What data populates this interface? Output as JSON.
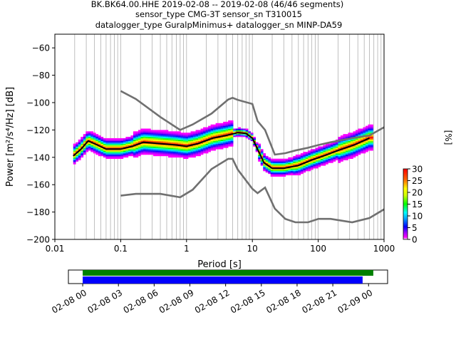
{
  "title": {
    "line1": "BK.BK64.00.HHE   2019-02-08 -- 2019-02-08  (46/46 segments)",
    "line2": "sensor_type CMG-3T sensor_sn T310015",
    "line3": "datalogger_type GuralpMinimus+ datalogger_sn MINP-DA59"
  },
  "chart_data": {
    "type": "heatmap",
    "xlabel": "Period [s]",
    "ylabel": "Power [m²/s⁴/Hz] [dB]",
    "x_scale": "log",
    "xlim": [
      0.01,
      1000
    ],
    "ylim": [
      -200,
      -50
    ],
    "x_ticks": [
      {
        "v": 0.01,
        "label": "0.01"
      },
      {
        "v": 0.1,
        "label": "0.1"
      },
      {
        "v": 1,
        "label": "1"
      },
      {
        "v": 10,
        "label": "10"
      },
      {
        "v": 100,
        "label": "100"
      },
      {
        "v": 1000,
        "label": "1000"
      }
    ],
    "y_ticks": [
      {
        "v": -60,
        "label": "−60"
      },
      {
        "v": -80,
        "label": "−80"
      },
      {
        "v": -100,
        "label": "−100"
      },
      {
        "v": -120,
        "label": "−120"
      },
      {
        "v": -140,
        "label": "−140"
      },
      {
        "v": -160,
        "label": "−160"
      },
      {
        "v": -180,
        "label": "−180"
      },
      {
        "v": -200,
        "label": "−200"
      }
    ],
    "grid": "vertical, at log-spaced periods",
    "nhnm_line": [
      [
        0.1,
        -91.5
      ],
      [
        0.17,
        -97.4
      ],
      [
        0.4,
        -110.5
      ],
      [
        0.8,
        -120
      ],
      [
        1.24,
        -116
      ],
      [
        2.4,
        -108
      ],
      [
        4.3,
        -97.7
      ],
      [
        5,
        -96.5
      ],
      [
        6,
        -98
      ],
      [
        10,
        -101
      ],
      [
        12,
        -113.5
      ],
      [
        15.6,
        -120
      ],
      [
        21.9,
        -138
      ],
      [
        31.6,
        -137
      ],
      [
        45,
        -135
      ],
      [
        70,
        -133
      ],
      [
        101,
        -131
      ],
      [
        154,
        -129
      ],
      [
        328,
        -126
      ],
      [
        600,
        -124
      ],
      [
        1000,
        -118
      ]
    ],
    "nlnm_line": [
      [
        0.1,
        -168
      ],
      [
        0.17,
        -166.7
      ],
      [
        0.4,
        -166.7
      ],
      [
        0.8,
        -169.2
      ],
      [
        1.24,
        -163.7
      ],
      [
        2.4,
        -148.6
      ],
      [
        4.3,
        -141.1
      ],
      [
        5,
        -141.1
      ],
      [
        6,
        -149
      ],
      [
        10,
        -163
      ],
      [
        12,
        -166.2
      ],
      [
        15.6,
        -162.1
      ],
      [
        21.9,
        -177.5
      ],
      [
        31.6,
        -185
      ],
      [
        45,
        -187.5
      ],
      [
        70,
        -187.5
      ],
      [
        101,
        -185
      ],
      [
        154,
        -185
      ],
      [
        328,
        -187.5
      ],
      [
        600,
        -184.4
      ],
      [
        1000,
        -178
      ]
    ],
    "mean_line": [
      [
        0.019,
        -139
      ],
      [
        0.025,
        -134
      ],
      [
        0.032,
        -128
      ],
      [
        0.04,
        -130
      ],
      [
        0.06,
        -134
      ],
      [
        0.1,
        -134
      ],
      [
        0.15,
        -132
      ],
      [
        0.22,
        -129
      ],
      [
        0.4,
        -130
      ],
      [
        0.7,
        -131
      ],
      [
        1,
        -132
      ],
      [
        1.5,
        -130
      ],
      [
        2.5,
        -126
      ],
      [
        4,
        -124
      ],
      [
        6,
        -122
      ],
      [
        8,
        -122.5
      ],
      [
        10,
        -126
      ],
      [
        12,
        -134
      ],
      [
        15,
        -144
      ],
      [
        20,
        -148
      ],
      [
        30,
        -148
      ],
      [
        50,
        -146
      ],
      [
        80,
        -142
      ],
      [
        120,
        -139
      ],
      [
        200,
        -135
      ],
      [
        350,
        -131
      ],
      [
        600,
        -126
      ]
    ],
    "colorbar": {
      "label": "[%]",
      "range": [
        0,
        30
      ],
      "ticks": [
        {
          "v": 0,
          "label": "0"
        },
        {
          "v": 5,
          "label": "5"
        },
        {
          "v": 10,
          "label": "10"
        },
        {
          "v": 15,
          "label": "15"
        },
        {
          "v": 20,
          "label": "20"
        },
        {
          "v": 25,
          "label": "25"
        },
        {
          "v": 30,
          "label": "30"
        }
      ]
    },
    "colors": {
      "reference_lines": "#707070",
      "mean": "#000000",
      "data_coverage": "#0000ff",
      "processed_coverage": "#008000"
    }
  },
  "timeline": {
    "ticks": [
      "02-08 00",
      "02-08 03",
      "02-08 06",
      "02-08 09",
      "02-08 12",
      "02-08 15",
      "02-08 18",
      "02-08 21",
      "02-09 00"
    ],
    "green_bar": {
      "start_hour": 0,
      "end_hour": 24.4
    },
    "blue_bar": {
      "start_hour": 0,
      "end_hour": 23.5
    },
    "range_hours": [
      -1.2,
      25.6
    ]
  }
}
